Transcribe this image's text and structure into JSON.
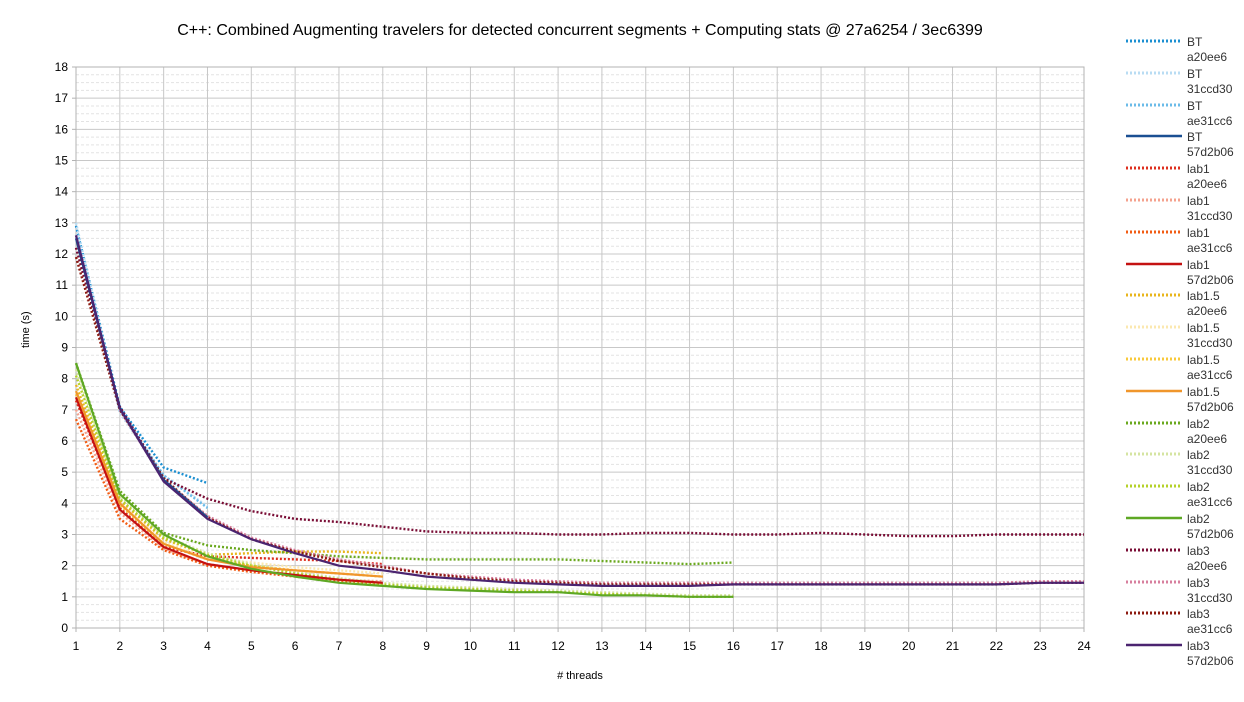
{
  "chart_data": {
    "type": "line",
    "title": "C++: Combined Augmenting travelers for detected concurrent segments + Computing stats @ 27a6254 / 3ec6399",
    "xlabel": "# threads",
    "ylabel": "time (s)",
    "xlim": [
      1,
      24
    ],
    "ylim": [
      0,
      18
    ],
    "x_ticks": [
      "1",
      "2",
      "3",
      "4",
      "5",
      "6",
      "7",
      "8",
      "9",
      "10",
      "11",
      "12",
      "13",
      "14",
      "15",
      "16",
      "17",
      "18",
      "19",
      "20",
      "21",
      "22",
      "23",
      "24"
    ],
    "y_ticks": [
      "0",
      "1",
      "2",
      "3",
      "4",
      "5",
      "6",
      "7",
      "8",
      "9",
      "10",
      "11",
      "12",
      "13",
      "14",
      "15",
      "16",
      "17",
      "18"
    ],
    "grid": true,
    "legend_position": "right",
    "series": [
      {
        "name": "BT",
        "commit": "a20ee6",
        "color": "#1b8fd1",
        "style": "dotted",
        "x": [
          1,
          2,
          3,
          4
        ],
        "y": [
          12.9,
          7.1,
          5.15,
          4.65
        ]
      },
      {
        "name": "BT",
        "commit": "31ccd30",
        "color": "#b9dcf3",
        "style": "dotted",
        "x": [
          1,
          2,
          3,
          4
        ],
        "y": [
          13.0,
          6.9,
          4.9,
          3.9
        ]
      },
      {
        "name": "BT",
        "commit": "ae31cc6",
        "color": "#6bbbe8",
        "style": "dotted",
        "x": [
          1,
          2,
          3,
          4
        ],
        "y": [
          12.6,
          7.0,
          4.9,
          3.85
        ]
      },
      {
        "name": "BT",
        "commit": "57d2b06",
        "color": "#1a4f92",
        "style": "solid",
        "x": [
          1,
          2,
          3,
          4
        ],
        "y": [
          12.5,
          7.05,
          4.75,
          3.55
        ]
      },
      {
        "name": "lab1",
        "commit": "a20ee6",
        "color": "#de2f1e",
        "style": "dotted",
        "x": [
          1,
          2,
          3,
          4,
          5,
          6,
          7,
          8
        ],
        "y": [
          7.3,
          3.85,
          2.6,
          2.3,
          2.25,
          2.2,
          2.15,
          2.05
        ]
      },
      {
        "name": "lab1",
        "commit": "31ccd30",
        "color": "#f4a28e",
        "style": "dotted",
        "x": [
          1,
          2,
          3,
          4,
          5,
          6,
          7,
          8
        ],
        "y": [
          7.0,
          3.7,
          2.55,
          2.05,
          1.85,
          1.7,
          1.55,
          1.5
        ]
      },
      {
        "name": "lab1",
        "commit": "ae31cc6",
        "color": "#f25c14",
        "style": "dotted",
        "x": [
          1,
          2,
          3,
          4,
          5,
          6,
          7,
          8
        ],
        "y": [
          6.7,
          3.5,
          2.5,
          2.0,
          1.8,
          1.65,
          1.5,
          1.4
        ]
      },
      {
        "name": "lab1",
        "commit": "57d2b06",
        "color": "#c41111",
        "style": "solid",
        "x": [
          1,
          2,
          3,
          4,
          5,
          6,
          7,
          8
        ],
        "y": [
          7.4,
          3.8,
          2.6,
          2.05,
          1.85,
          1.7,
          1.55,
          1.45
        ]
      },
      {
        "name": "lab1.5",
        "commit": "a20ee6",
        "color": "#e8b51c",
        "style": "dotted",
        "x": [
          1,
          2,
          3,
          4,
          5,
          6,
          7,
          8
        ],
        "y": [
          7.8,
          4.1,
          2.85,
          2.35,
          2.4,
          2.45,
          2.45,
          2.4
        ]
      },
      {
        "name": "lab1.5",
        "commit": "31ccd30",
        "color": "#fbe8b0",
        "style": "dotted",
        "x": [
          1,
          2,
          3,
          4,
          5,
          6,
          7,
          8
        ],
        "y": [
          7.6,
          4.0,
          2.75,
          2.25,
          2.1,
          1.95,
          1.85,
          1.75
        ]
      },
      {
        "name": "lab1.5",
        "commit": "ae31cc6",
        "color": "#f8c93a",
        "style": "dotted",
        "x": [
          1,
          2,
          3,
          4,
          5,
          6,
          7,
          8
        ],
        "y": [
          7.5,
          3.95,
          2.7,
          2.2,
          2.0,
          1.85,
          1.75,
          1.65
        ]
      },
      {
        "name": "lab1.5",
        "commit": "57d2b06",
        "color": "#f0962b",
        "style": "solid",
        "x": [
          1,
          2,
          3,
          4,
          5,
          6,
          7,
          8
        ],
        "y": [
          7.6,
          4.0,
          2.7,
          2.2,
          1.95,
          1.85,
          1.75,
          1.65
        ]
      },
      {
        "name": "lab2",
        "commit": "a20ee6",
        "color": "#6aa81e",
        "style": "dotted",
        "x": [
          1,
          2,
          3,
          4,
          5,
          6,
          7,
          8,
          9,
          10,
          11,
          12,
          13,
          14,
          15,
          16
        ],
        "y": [
          8.5,
          4.4,
          3.05,
          2.65,
          2.5,
          2.4,
          2.3,
          2.25,
          2.2,
          2.2,
          2.2,
          2.2,
          2.15,
          2.1,
          2.05,
          2.1
        ]
      },
      {
        "name": "lab2",
        "commit": "31ccd30",
        "color": "#d5e4a2",
        "style": "dotted",
        "x": [
          1,
          2,
          3,
          4,
          5,
          6,
          7,
          8,
          9,
          10,
          11,
          12,
          13,
          14,
          15,
          16
        ],
        "y": [
          8.3,
          4.25,
          2.95,
          2.4,
          2.05,
          1.8,
          1.6,
          1.45,
          1.35,
          1.3,
          1.25,
          1.2,
          1.15,
          1.1,
          1.05,
          1.05
        ]
      },
      {
        "name": "lab2",
        "commit": "ae31cc6",
        "color": "#b5d12a",
        "style": "dotted",
        "x": [
          1,
          2,
          3,
          4,
          5,
          6,
          7,
          8,
          9,
          10,
          11,
          12,
          13,
          14,
          15,
          16
        ],
        "y": [
          8.1,
          4.15,
          2.9,
          2.35,
          2.0,
          1.75,
          1.55,
          1.4,
          1.3,
          1.25,
          1.2,
          1.15,
          1.1,
          1.05,
          1.0,
          1.0
        ]
      },
      {
        "name": "lab2",
        "commit": "57d2b06",
        "color": "#5ea824",
        "style": "solid",
        "x": [
          1,
          2,
          3,
          4,
          5,
          6,
          7,
          8,
          9,
          10,
          11,
          12,
          13,
          14,
          15,
          16
        ],
        "y": [
          8.5,
          4.3,
          3.0,
          2.3,
          1.9,
          1.65,
          1.45,
          1.35,
          1.25,
          1.2,
          1.15,
          1.15,
          1.05,
          1.05,
          1.0,
          1.0
        ]
      },
      {
        "name": "lab3",
        "commit": "a20ee6",
        "color": "#7a0e36",
        "style": "dotted",
        "x": [
          1,
          2,
          3,
          4,
          5,
          6,
          7,
          8,
          9,
          10,
          11,
          12,
          13,
          14,
          15,
          16,
          17,
          18,
          19,
          20,
          21,
          22,
          23,
          24
        ],
        "y": [
          12.2,
          7.1,
          4.8,
          4.15,
          3.75,
          3.5,
          3.4,
          3.25,
          3.1,
          3.05,
          3.05,
          3.0,
          3.0,
          3.05,
          3.05,
          3.0,
          3.0,
          3.05,
          3.0,
          2.95,
          2.95,
          3.0,
          3.0,
          3.0
        ]
      },
      {
        "name": "lab3",
        "commit": "31ccd30",
        "color": "#d77f9e",
        "style": "dotted",
        "x": [
          1,
          2,
          3,
          4,
          5,
          6,
          7,
          8,
          9,
          10,
          11,
          12,
          13,
          14,
          15,
          16,
          17,
          18,
          19,
          20,
          21,
          22,
          23,
          24
        ],
        "y": [
          12.6,
          7.0,
          4.75,
          3.6,
          2.9,
          2.5,
          2.2,
          2.0,
          1.75,
          1.65,
          1.55,
          1.5,
          1.45,
          1.45,
          1.45,
          1.45,
          1.45,
          1.45,
          1.45,
          1.45,
          1.45,
          1.45,
          1.5,
          1.5
        ]
      },
      {
        "name": "lab3",
        "commit": "ae31cc6",
        "color": "#8c1a10",
        "style": "dotted",
        "x": [
          1,
          2,
          3,
          4,
          5,
          6,
          7,
          8,
          9,
          10,
          11,
          12,
          13,
          14,
          15,
          16,
          17,
          18,
          19,
          20,
          21,
          22,
          23,
          24
        ],
        "y": [
          11.9,
          7.0,
          4.8,
          3.55,
          2.85,
          2.45,
          2.15,
          1.95,
          1.75,
          1.6,
          1.5,
          1.45,
          1.4,
          1.4,
          1.4,
          1.4,
          1.4,
          1.4,
          1.4,
          1.4,
          1.4,
          1.4,
          1.45,
          1.45
        ]
      },
      {
        "name": "lab3",
        "commit": "57d2b06",
        "color": "#4b2470",
        "style": "solid",
        "x": [
          1,
          2,
          3,
          4,
          5,
          6,
          7,
          8,
          9,
          10,
          11,
          12,
          13,
          14,
          15,
          16,
          17,
          18,
          19,
          20,
          21,
          22,
          23,
          24
        ],
        "y": [
          12.6,
          7.05,
          4.7,
          3.5,
          2.85,
          2.4,
          2.0,
          1.85,
          1.65,
          1.55,
          1.45,
          1.4,
          1.35,
          1.35,
          1.35,
          1.4,
          1.4,
          1.4,
          1.4,
          1.4,
          1.4,
          1.4,
          1.45,
          1.45
        ]
      }
    ]
  }
}
